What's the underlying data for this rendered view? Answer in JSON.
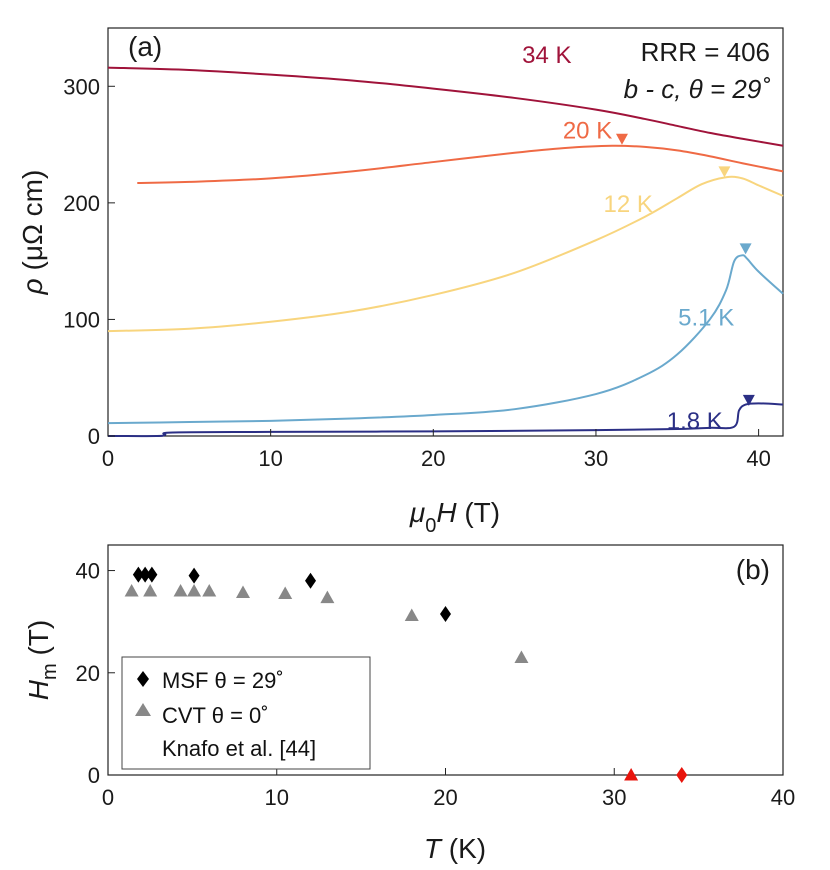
{
  "chart_data": [
    {
      "type": "line",
      "panel": "(a)",
      "annotation": [
        "RRR = 406",
        "b - c, θ = 29˚"
      ],
      "xlabel": {
        "sym": "μ",
        "sub": "0",
        "var": "H",
        "unit": " (T)"
      },
      "ylabel": {
        "sym": "ρ",
        "unit": " (μΩ cm)"
      },
      "xlim": [
        0,
        41.5
      ],
      "ylim": [
        0,
        350
      ],
      "xticks": [
        0,
        10,
        20,
        30,
        40
      ],
      "yticks": [
        0,
        100,
        200,
        300
      ],
      "series": [
        {
          "name": "34 K",
          "color": "#a0133a",
          "x": [
            0,
            5,
            10,
            15,
            20,
            25,
            30,
            33,
            35,
            37,
            39,
            41.5
          ],
          "y": [
            316,
            314,
            310,
            305,
            298,
            290,
            280,
            272,
            266,
            260,
            255,
            249
          ],
          "label_x": 28.5,
          "label_y": 320
        },
        {
          "name": "20 K",
          "color": "#ef6a45",
          "x": [
            1.8,
            5,
            10,
            15,
            20,
            25,
            28,
            31,
            33,
            35,
            37,
            39,
            41.5
          ],
          "y": [
            217,
            218,
            221,
            227,
            235,
            243,
            247,
            249,
            248,
            245,
            240,
            234,
            227
          ],
          "label_x": 31,
          "label_y": 255
        },
        {
          "name": "12 K",
          "color": "#f8d57e",
          "x": [
            0,
            5,
            10,
            15,
            20,
            25,
            30,
            33,
            35,
            36.5,
            38,
            39,
            40,
            41.5
          ],
          "y": [
            90,
            92,
            98,
            107,
            121,
            140,
            168,
            188,
            204,
            216,
            222,
            221,
            215,
            206
          ],
          "label_x": 33.5,
          "label_y": 192
        },
        {
          "name": "5.1 K",
          "color": "#6aa9cd",
          "x": [
            0,
            5,
            10,
            15,
            20,
            25,
            30,
            33,
            35,
            37,
            38,
            38.5,
            39,
            39.3,
            40,
            41.5
          ],
          "y": [
            11,
            12,
            13,
            15,
            18,
            23,
            36,
            52,
            70,
            100,
            125,
            150,
            155,
            152,
            141,
            122
          ],
          "label_x": 38.5,
          "label_y": 95
        },
        {
          "name": "1.8 K",
          "color": "#2b2f85",
          "x": [
            0,
            3,
            3.5,
            4,
            10,
            20,
            30,
            35,
            37,
            38.5,
            38.8,
            39.2,
            40,
            41.5
          ],
          "y": [
            0,
            0,
            1,
            3,
            3.5,
            4,
            5,
            6,
            7,
            8,
            22,
            27,
            28,
            27
          ],
          "label_x": 37.8,
          "label_y": 6
        }
      ],
      "markers": [
        {
          "color": "#ef6a45",
          "x": 31.6,
          "y": 255
        },
        {
          "color": "#f8d57e",
          "x": 37.9,
          "y": 227
        },
        {
          "color": "#6aa9cd",
          "x": 39.2,
          "y": 161
        },
        {
          "color": "#2b2f85",
          "x": 39.4,
          "y": 31
        }
      ]
    },
    {
      "type": "scatter",
      "panel": "(b)",
      "xlabel": {
        "var": "T",
        "unit": " (K)"
      },
      "ylabel": {
        "var": "H",
        "sub": "m",
        "unit": " (T)"
      },
      "xlim": [
        0,
        40
      ],
      "ylim": [
        0,
        45
      ],
      "xticks": [
        0,
        10,
        20,
        30,
        40
      ],
      "yticks": [
        0,
        20,
        40
      ],
      "series": [
        {
          "name": "MSF θ = 29˚",
          "marker": "diamond",
          "color": "#000000",
          "points": [
            [
              1.8,
              39.2
            ],
            [
              2.2,
              39.2
            ],
            [
              2.6,
              39.2
            ],
            [
              5.1,
              39
            ],
            [
              12,
              38
            ],
            [
              20,
              31.5
            ]
          ]
        },
        {
          "name": "CVT θ = 0˚",
          "marker": "triangle",
          "color": "#888888",
          "points": [
            [
              1.4,
              36
            ],
            [
              2.5,
              36
            ],
            [
              4.3,
              36
            ],
            [
              5.1,
              36
            ],
            [
              6,
              36
            ],
            [
              8,
              35.7
            ],
            [
              10.5,
              35.5
            ],
            [
              13,
              34.7
            ],
            [
              18,
              31.2
            ],
            [
              24.5,
              23
            ]
          ]
        },
        {
          "name": "",
          "marker": "triangle",
          "color": "#e8140c",
          "points": [
            [
              31,
              0
            ]
          ]
        },
        {
          "name": "",
          "marker": "diamond",
          "color": "#e8140c",
          "points": [
            [
              34,
              0
            ]
          ]
        }
      ],
      "legend": {
        "placement": "bottom-left",
        "lines": [
          "MSF θ = 29˚",
          "CVT θ = 0˚",
          "Knafo et al. [44]"
        ]
      }
    }
  ]
}
